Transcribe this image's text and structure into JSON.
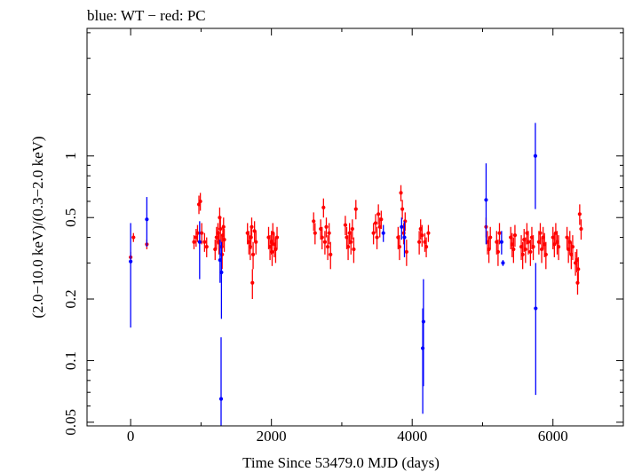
{
  "chart_data": {
    "type": "scatter",
    "title": "blue: WT − red: PC",
    "xlabel": "Time Since 53479.0 MJD (days)",
    "ylabel": "(2.0−10.0 keV)/(0.3−2.0 keV)",
    "xlim": [
      -620,
      7000
    ],
    "ylim": [
      0.048,
      4.2
    ],
    "yscale": "log",
    "xticks": [
      0,
      2000,
      4000,
      6000
    ],
    "yticks": [
      0.05,
      0.1,
      0.2,
      0.5,
      1
    ],
    "ytick_labels": [
      "0.05",
      "0.1",
      "0.2",
      "0.5",
      "1"
    ],
    "grid": false,
    "colors": {
      "WT": "#0000ff",
      "PC": "#ff0000",
      "axes": "#000000"
    },
    "series": [
      {
        "key": "WT",
        "color": "#0000ff",
        "points": [
          [
            0,
            0.305,
            0.145,
            0.47
          ],
          [
            230,
            0.49,
            0.36,
            0.63
          ],
          [
            980,
            0.38,
            0.25,
            0.48
          ],
          [
            1270,
            0.31,
            0.24,
            0.39
          ],
          [
            1290,
            0.27,
            0.16,
            0.38
          ],
          [
            1285,
            0.065,
            0.045,
            0.13
          ],
          [
            3590,
            0.42,
            0.38,
            0.46
          ],
          [
            3850,
            0.45,
            0.39,
            0.5
          ],
          [
            3890,
            0.4,
            0.32,
            0.48
          ],
          [
            4150,
            0.115,
            0.055,
            0.18
          ],
          [
            4160,
            0.155,
            0.075,
            0.25
          ],
          [
            5050,
            0.61,
            0.37,
            0.92
          ],
          [
            5270,
            0.38,
            0.33,
            0.43
          ],
          [
            5290,
            0.3,
            0.29,
            0.31
          ],
          [
            5750,
            1.0,
            0.55,
            1.45
          ],
          [
            5755,
            0.18,
            0.068,
            0.3
          ]
        ]
      },
      {
        "key": "PC",
        "color": "#ff0000",
        "points": [
          [
            0,
            0.32,
            0.3,
            0.34
          ],
          [
            40,
            0.4,
            0.38,
            0.42
          ],
          [
            230,
            0.37,
            0.35,
            0.39
          ],
          [
            900,
            0.38,
            0.35,
            0.41
          ],
          [
            930,
            0.4,
            0.36,
            0.44
          ],
          [
            950,
            0.42,
            0.38,
            0.46
          ],
          [
            970,
            0.58,
            0.52,
            0.64
          ],
          [
            990,
            0.6,
            0.54,
            0.66
          ],
          [
            1010,
            0.42,
            0.37,
            0.47
          ],
          [
            1050,
            0.38,
            0.34,
            0.42
          ],
          [
            1080,
            0.36,
            0.32,
            0.4
          ],
          [
            1200,
            0.35,
            0.31,
            0.39
          ],
          [
            1220,
            0.4,
            0.35,
            0.45
          ],
          [
            1240,
            0.42,
            0.37,
            0.47
          ],
          [
            1255,
            0.38,
            0.33,
            0.43
          ],
          [
            1265,
            0.5,
            0.44,
            0.56
          ],
          [
            1275,
            0.44,
            0.38,
            0.5
          ],
          [
            1295,
            0.36,
            0.31,
            0.41
          ],
          [
            1300,
            0.33,
            0.28,
            0.38
          ],
          [
            1310,
            0.41,
            0.36,
            0.46
          ],
          [
            1320,
            0.45,
            0.4,
            0.5
          ],
          [
            1330,
            0.39,
            0.34,
            0.44
          ],
          [
            1660,
            0.42,
            0.37,
            0.47
          ],
          [
            1680,
            0.38,
            0.33,
            0.43
          ],
          [
            1700,
            0.36,
            0.31,
            0.41
          ],
          [
            1710,
            0.4,
            0.35,
            0.45
          ],
          [
            1720,
            0.45,
            0.4,
            0.5
          ],
          [
            1730,
            0.24,
            0.2,
            0.28
          ],
          [
            1740,
            0.33,
            0.28,
            0.38
          ],
          [
            1760,
            0.43,
            0.38,
            0.48
          ],
          [
            1780,
            0.38,
            0.33,
            0.43
          ],
          [
            1960,
            0.4,
            0.35,
            0.45
          ],
          [
            1980,
            0.36,
            0.31,
            0.41
          ],
          [
            2000,
            0.38,
            0.33,
            0.43
          ],
          [
            2010,
            0.34,
            0.29,
            0.39
          ],
          [
            2020,
            0.42,
            0.37,
            0.47
          ],
          [
            2040,
            0.37,
            0.32,
            0.42
          ],
          [
            2060,
            0.35,
            0.3,
            0.4
          ],
          [
            2080,
            0.4,
            0.35,
            0.45
          ],
          [
            2600,
            0.48,
            0.43,
            0.53
          ],
          [
            2620,
            0.42,
            0.37,
            0.47
          ],
          [
            2700,
            0.44,
            0.39,
            0.49
          ],
          [
            2720,
            0.4,
            0.35,
            0.45
          ],
          [
            2740,
            0.56,
            0.5,
            0.62
          ],
          [
            2760,
            0.38,
            0.33,
            0.43
          ],
          [
            2780,
            0.45,
            0.4,
            0.5
          ],
          [
            2800,
            0.36,
            0.31,
            0.41
          ],
          [
            2820,
            0.42,
            0.37,
            0.47
          ],
          [
            2840,
            0.33,
            0.28,
            0.38
          ],
          [
            3050,
            0.46,
            0.41,
            0.51
          ],
          [
            3070,
            0.4,
            0.35,
            0.45
          ],
          [
            3090,
            0.36,
            0.31,
            0.41
          ],
          [
            3110,
            0.42,
            0.37,
            0.47
          ],
          [
            3130,
            0.38,
            0.33,
            0.43
          ],
          [
            3150,
            0.44,
            0.39,
            0.49
          ],
          [
            3170,
            0.35,
            0.3,
            0.4
          ],
          [
            3200,
            0.55,
            0.49,
            0.61
          ],
          [
            3450,
            0.42,
            0.37,
            0.47
          ],
          [
            3480,
            0.47,
            0.42,
            0.52
          ],
          [
            3500,
            0.4,
            0.35,
            0.45
          ],
          [
            3520,
            0.52,
            0.46,
            0.58
          ],
          [
            3540,
            0.45,
            0.4,
            0.5
          ],
          [
            3560,
            0.49,
            0.44,
            0.54
          ],
          [
            3800,
            0.4,
            0.35,
            0.45
          ],
          [
            3820,
            0.36,
            0.31,
            0.41
          ],
          [
            3840,
            0.66,
            0.6,
            0.72
          ],
          [
            3860,
            0.55,
            0.49,
            0.61
          ],
          [
            3880,
            0.42,
            0.37,
            0.47
          ],
          [
            3900,
            0.48,
            0.43,
            0.53
          ],
          [
            3920,
            0.34,
            0.29,
            0.39
          ],
          [
            4100,
            0.38,
            0.33,
            0.43
          ],
          [
            4120,
            0.44,
            0.39,
            0.49
          ],
          [
            4140,
            0.41,
            0.36,
            0.46
          ],
          [
            4180,
            0.38,
            0.34,
            0.42
          ],
          [
            4200,
            0.36,
            0.32,
            0.4
          ],
          [
            4230,
            0.42,
            0.38,
            0.46
          ],
          [
            5050,
            0.45,
            0.4,
            0.5
          ],
          [
            5070,
            0.38,
            0.33,
            0.43
          ],
          [
            5090,
            0.35,
            0.3,
            0.4
          ],
          [
            5110,
            0.4,
            0.35,
            0.45
          ],
          [
            5200,
            0.38,
            0.33,
            0.43
          ],
          [
            5220,
            0.34,
            0.29,
            0.39
          ],
          [
            5240,
            0.42,
            0.37,
            0.47
          ],
          [
            5400,
            0.4,
            0.35,
            0.45
          ],
          [
            5420,
            0.37,
            0.32,
            0.42
          ],
          [
            5440,
            0.35,
            0.3,
            0.4
          ],
          [
            5460,
            0.41,
            0.36,
            0.46
          ],
          [
            5550,
            0.36,
            0.31,
            0.41
          ],
          [
            5570,
            0.33,
            0.28,
            0.38
          ],
          [
            5590,
            0.39,
            0.34,
            0.44
          ],
          [
            5610,
            0.35,
            0.3,
            0.4
          ],
          [
            5630,
            0.42,
            0.37,
            0.47
          ],
          [
            5650,
            0.38,
            0.33,
            0.43
          ],
          [
            5680,
            0.34,
            0.29,
            0.39
          ],
          [
            5700,
            0.4,
            0.35,
            0.45
          ],
          [
            5720,
            0.36,
            0.31,
            0.41
          ],
          [
            5800,
            0.38,
            0.33,
            0.43
          ],
          [
            5820,
            0.42,
            0.37,
            0.47
          ],
          [
            5840,
            0.35,
            0.3,
            0.4
          ],
          [
            5860,
            0.4,
            0.35,
            0.45
          ],
          [
            5880,
            0.37,
            0.32,
            0.42
          ],
          [
            5900,
            0.33,
            0.28,
            0.38
          ],
          [
            6000,
            0.4,
            0.35,
            0.45
          ],
          [
            6020,
            0.37,
            0.32,
            0.42
          ],
          [
            6040,
            0.42,
            0.37,
            0.47
          ],
          [
            6060,
            0.38,
            0.33,
            0.43
          ],
          [
            6080,
            0.36,
            0.31,
            0.41
          ],
          [
            6200,
            0.4,
            0.35,
            0.45
          ],
          [
            6220,
            0.35,
            0.3,
            0.4
          ],
          [
            6240,
            0.38,
            0.33,
            0.43
          ],
          [
            6260,
            0.33,
            0.28,
            0.38
          ],
          [
            6280,
            0.36,
            0.31,
            0.41
          ],
          [
            6320,
            0.3,
            0.26,
            0.34
          ],
          [
            6340,
            0.31,
            0.27,
            0.35
          ],
          [
            6350,
            0.24,
            0.21,
            0.27
          ],
          [
            6360,
            0.28,
            0.24,
            0.32
          ],
          [
            6380,
            0.52,
            0.46,
            0.58
          ],
          [
            6400,
            0.44,
            0.39,
            0.49
          ]
        ]
      }
    ]
  }
}
